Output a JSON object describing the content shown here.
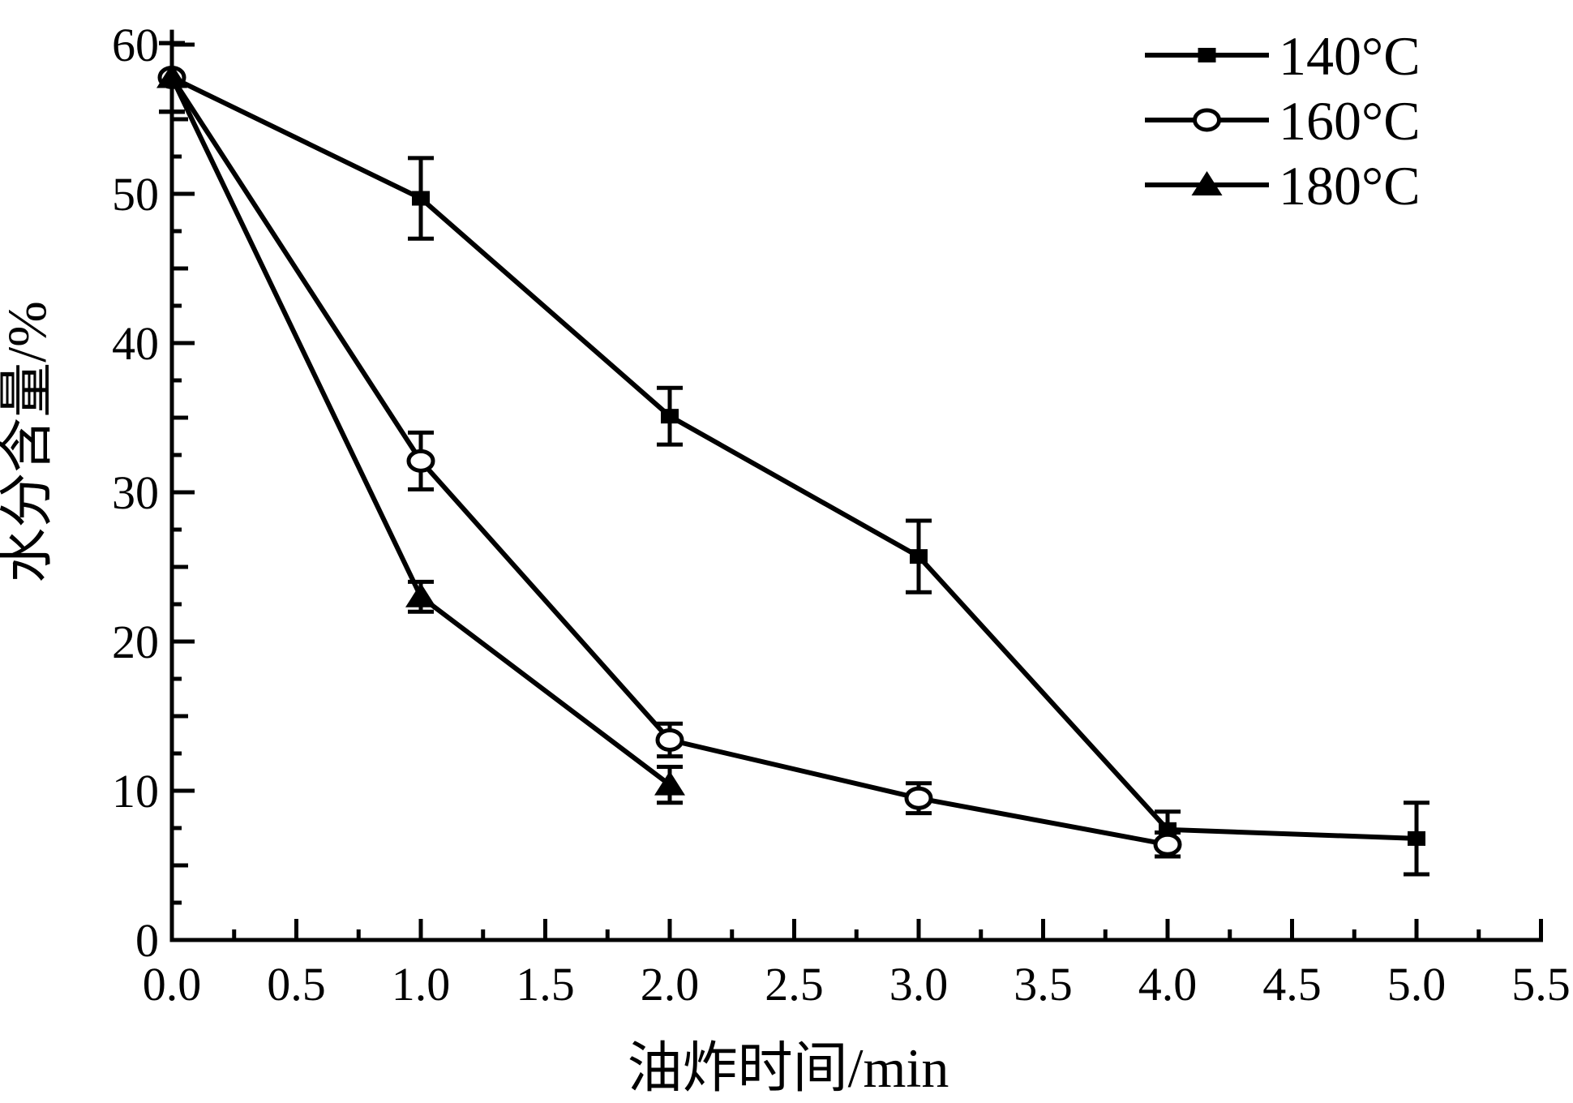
{
  "chart_data": {
    "type": "line",
    "title": "",
    "xlabel": "油炸时间/min",
    "ylabel": "水分含量/%",
    "xlim": [
      0,
      5.5
    ],
    "ylim": [
      0,
      61
    ],
    "x_axis": {
      "major_tick_step": 0.5,
      "minor_tick_step": 0.25,
      "label_step": 0.5,
      "label_decimals": 1
    },
    "y_axis": {
      "major_tick_step": 10,
      "medium_tick_step": 5,
      "minor_tick_step": 2.5,
      "label_step": 10,
      "label_decimals": 0,
      "label_max": 60
    },
    "grid": false,
    "legend_position": "top-right",
    "series": [
      {
        "name": "140°C",
        "marker": "filled-square-icon",
        "x": [
          0,
          1.0,
          2.0,
          3.0,
          4.0,
          5.0
        ],
        "y": [
          57.8,
          49.7,
          35.1,
          25.7,
          7.4,
          6.8
        ],
        "yerr": [
          2.3,
          2.7,
          1.9,
          2.4,
          1.2,
          2.4
        ]
      },
      {
        "name": "160°C",
        "marker": "open-circle-icon",
        "x": [
          0,
          1.0,
          2.0,
          3.0,
          4.0
        ],
        "y": [
          57.8,
          32.1,
          13.4,
          9.5,
          6.4
        ],
        "yerr": [
          2.3,
          1.9,
          1.1,
          1.0,
          0.8
        ]
      },
      {
        "name": "180°C",
        "marker": "filled-triangle-icon",
        "x": [
          0,
          1.0,
          2.0
        ],
        "y": [
          57.8,
          23.0,
          10.4
        ],
        "yerr": [
          2.3,
          1.0,
          1.2
        ]
      }
    ],
    "colors": {
      "foreground": "#000000",
      "background": "#ffffff"
    }
  }
}
